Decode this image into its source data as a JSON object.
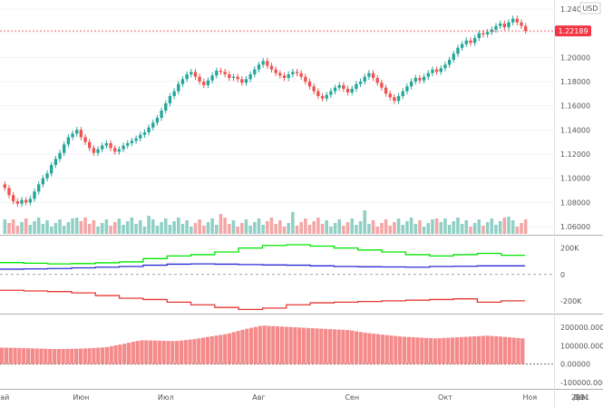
{
  "currency": "USD",
  "price_badge": {
    "label": "1.22189",
    "value": 1.22189,
    "color": "#f23645"
  },
  "colors": {
    "up": "#26a69a",
    "down": "#ef5350",
    "green_line": "#00e600",
    "blue_line": "#2b2bd6",
    "red_line": "#e53935",
    "histogram": "#f48a8a",
    "grid": "#f0f3fa",
    "separator": "#b0b0b0"
  },
  "x_axis": {
    "labels": [
      "ай",
      "Июн",
      "Июл",
      "Авг",
      "Сен",
      "Окт",
      "Ноя",
      "Дек",
      "2021",
      "21"
    ],
    "label_positions_index": [
      0,
      18,
      38,
      60,
      82,
      104,
      124,
      145,
      164,
      180
    ]
  },
  "chart_data": [
    {
      "type": "candlestick",
      "title": "",
      "series_name": "",
      "y_ticks": [
        "1.24000",
        "1.22000",
        "1.20000",
        "1.18000",
        "1.16000",
        "1.14000",
        "1.12000",
        "1.10000",
        "1.08000",
        "1.06000"
      ],
      "ylim": [
        1.054,
        1.246
      ],
      "current_price": 1.22189,
      "close": [
        1.092,
        1.086,
        1.081,
        1.079,
        1.082,
        1.08,
        1.083,
        1.089,
        1.095,
        1.1,
        1.104,
        1.111,
        1.116,
        1.121,
        1.128,
        1.134,
        1.137,
        1.14,
        1.134,
        1.13,
        1.125,
        1.121,
        1.124,
        1.127,
        1.129,
        1.125,
        1.122,
        1.124,
        1.127,
        1.129,
        1.131,
        1.133,
        1.136,
        1.138,
        1.142,
        1.146,
        1.15,
        1.156,
        1.162,
        1.168,
        1.172,
        1.178,
        1.182,
        1.186,
        1.188,
        1.184,
        1.18,
        1.177,
        1.181,
        1.185,
        1.189,
        1.188,
        1.186,
        1.183,
        1.184,
        1.182,
        1.179,
        1.182,
        1.186,
        1.19,
        1.194,
        1.197,
        1.193,
        1.19,
        1.187,
        1.185,
        1.183,
        1.186,
        1.188,
        1.187,
        1.184,
        1.18,
        1.176,
        1.172,
        1.168,
        1.166,
        1.169,
        1.172,
        1.175,
        1.177,
        1.174,
        1.171,
        1.174,
        1.178,
        1.18,
        1.184,
        1.187,
        1.183,
        1.179,
        1.175,
        1.17,
        1.167,
        1.164,
        1.168,
        1.172,
        1.176,
        1.18,
        1.183,
        1.181,
        1.184,
        1.187,
        1.19,
        1.188,
        1.191,
        1.194,
        1.198,
        1.203,
        1.208,
        1.211,
        1.214,
        1.212,
        1.216,
        1.22,
        1.219,
        1.221,
        1.223,
        1.226,
        1.228,
        1.225,
        1.229,
        1.232,
        1.229,
        1.226,
        1.222
      ],
      "volume_visible": true
    },
    {
      "type": "line",
      "title": "",
      "y_ticks": [
        "200K",
        "0",
        "-200K"
      ],
      "ylim": [
        -290000,
        280000
      ],
      "series": [
        {
          "name": "",
          "color": "#00e600",
          "values": [
            90000,
            85000,
            80000,
            82000,
            88000,
            95000,
            120000,
            140000,
            150000,
            170000,
            200000,
            220000,
            225000,
            215000,
            200000,
            185000,
            170000,
            150000,
            140000,
            150000,
            160000,
            145000
          ]
        },
        {
          "name": "",
          "color": "#2b2bd6",
          "values": [
            40000,
            42000,
            45000,
            50000,
            55000,
            60000,
            70000,
            78000,
            80000,
            78000,
            75000,
            72000,
            70000,
            65000,
            60000,
            58000,
            57000,
            55000,
            60000,
            62000,
            65000,
            65000
          ]
        },
        {
          "name": "",
          "color": "#e53935",
          "values": [
            -120000,
            -125000,
            -130000,
            -140000,
            -160000,
            -180000,
            -190000,
            -210000,
            -230000,
            -250000,
            -265000,
            -255000,
            -230000,
            -215000,
            -210000,
            -205000,
            -200000,
            -195000,
            -190000,
            -185000,
            -210000,
            -200000
          ]
        }
      ],
      "zero_line": true
    },
    {
      "type": "bar",
      "title": "",
      "y_ticks": [
        "200000.00000",
        "100000.00000",
        "0.00000",
        "-100000.00000"
      ],
      "ylim": [
        -130000,
        260000
      ],
      "color": "#f48a8a",
      "values": [
        90000,
        88000,
        85000,
        82000,
        83000,
        86000,
        92000,
        110000,
        130000,
        128000,
        125000,
        135000,
        150000,
        165000,
        190000,
        210000,
        205000,
        200000,
        195000,
        190000,
        185000,
        170000,
        160000,
        150000,
        145000,
        140000,
        145000,
        150000,
        155000,
        148000,
        140000
      ]
    }
  ]
}
